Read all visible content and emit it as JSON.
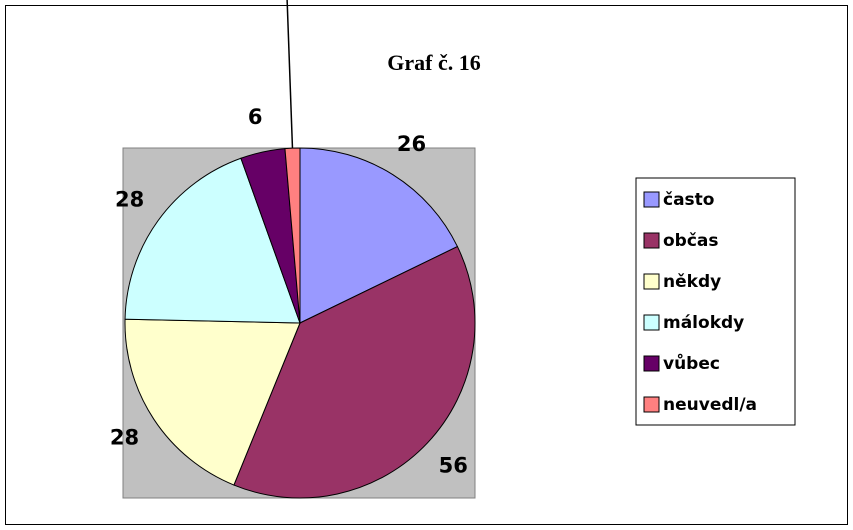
{
  "chart_data": {
    "type": "pie",
    "title": "Graf č. 16",
    "categories": [
      "často",
      "občas",
      "někdy",
      "málokdy",
      "vůbec",
      "neuvedl/a"
    ],
    "values": [
      26,
      56,
      28,
      28,
      6,
      2
    ],
    "colors": [
      "#9999ff",
      "#993366",
      "#ffffcc",
      "#ccffff",
      "#660066",
      "#ff8080"
    ],
    "legend": "right"
  }
}
